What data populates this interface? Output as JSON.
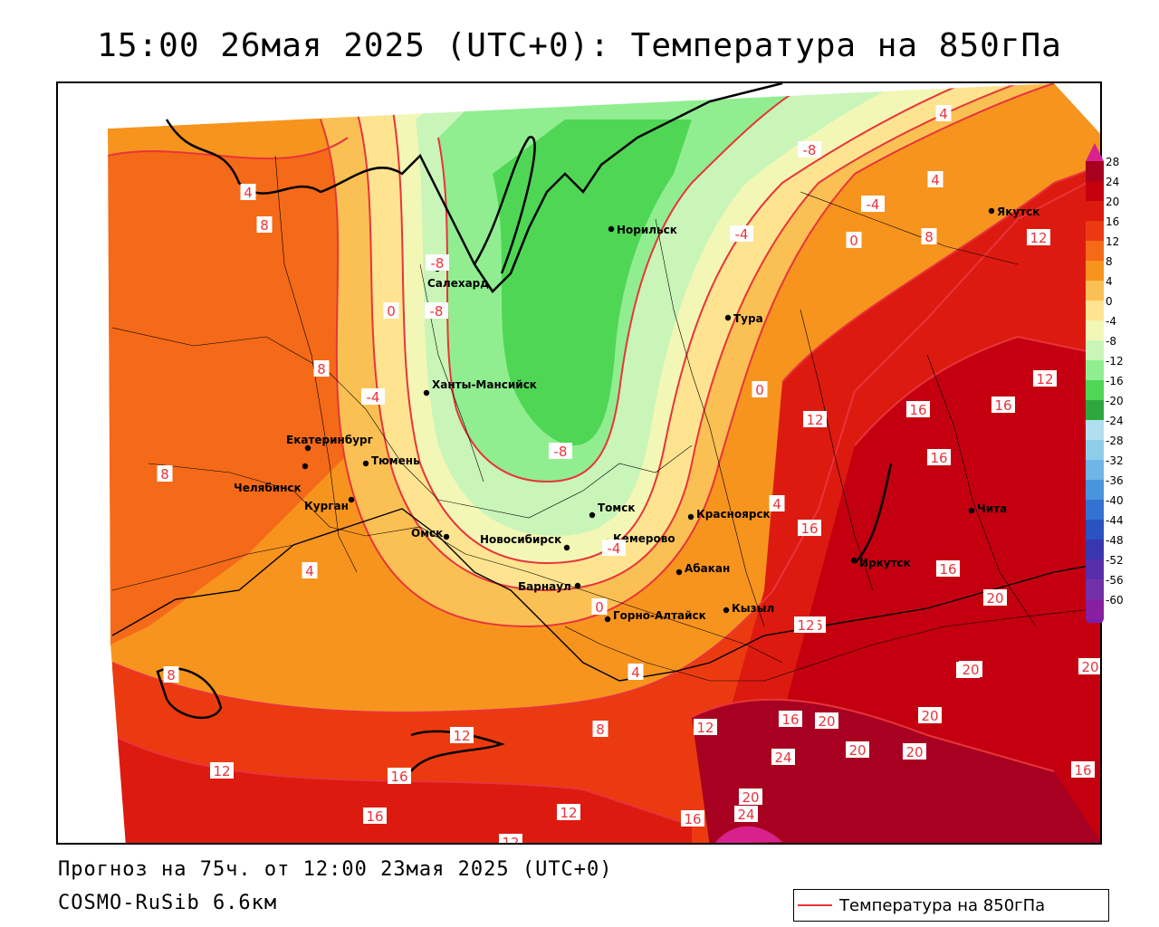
{
  "header": {
    "title": "15:00 26мая 2025 (UTC+0): Температура на 850гПа"
  },
  "footer": {
    "forecast": "Прогноз на 75ч. от 12:00 23мая 2025 (UTC+0)",
    "model": "COSMO-RuSib 6.6км"
  },
  "legend": {
    "label": "Температура на 850гПа",
    "line_color": "#e8343b"
  },
  "colorbar": {
    "ticks": [
      "28",
      "24",
      "20",
      "16",
      "12",
      "8",
      "4",
      "0",
      "-4",
      "-8",
      "-12",
      "-16",
      "-20",
      "-24",
      "-28",
      "-32",
      "-36",
      "-40",
      "-44",
      "-48",
      "-52",
      "-56",
      "-60"
    ],
    "colors": [
      "#a80020",
      "#c40010",
      "#dc1a10",
      "#ec3a10",
      "#f46a18",
      "#f7941e",
      "#fbc054",
      "#fee490",
      "#f3f7b5",
      "#c9f5b8",
      "#90ee90",
      "#4fd655",
      "#2ea83c",
      "#b2dff0",
      "#8ecde8",
      "#6fb6e6",
      "#4a94de",
      "#3372d0",
      "#2a52c0",
      "#3a36b0",
      "#5a2eaa",
      "#7230a8",
      "#881ea0"
    ],
    "top_arrow_color": "#d8218c",
    "bottom_arrow_color": "#7a1eb0"
  },
  "cities": [
    {
      "name": "Норильск"
    },
    {
      "name": "Салехард"
    },
    {
      "name": "Тура"
    },
    {
      "name": "Якутск"
    },
    {
      "name": "Ханты-Мансийск"
    },
    {
      "name": "Екатеринбург"
    },
    {
      "name": "Тюмень"
    },
    {
      "name": "Челябинск"
    },
    {
      "name": "Курган"
    },
    {
      "name": "Омск"
    },
    {
      "name": "Томск"
    },
    {
      "name": "Красноярск"
    },
    {
      "name": "Кемерово"
    },
    {
      "name": "Новосибирск"
    },
    {
      "name": "Абакан"
    },
    {
      "name": "Барнаул"
    },
    {
      "name": "Горно-Алтайск"
    },
    {
      "name": "Кызыл"
    },
    {
      "name": "Иркутск"
    },
    {
      "name": "Чита"
    }
  ],
  "isolines": [
    "4",
    "8",
    "4",
    "-4",
    "-8",
    "-8",
    "0",
    "-4",
    "-4",
    "0",
    "8",
    "4",
    "4",
    "12",
    "8",
    "-8",
    "0",
    "-8",
    "12",
    "16",
    "16",
    "12",
    "8",
    "16",
    "16",
    "16",
    "4",
    "16",
    "20",
    "12",
    "16",
    "4",
    "-4",
    "0",
    "4",
    "8",
    "20",
    "20",
    "8",
    "12",
    "12",
    "16",
    "20",
    "20",
    "20",
    "20",
    "24",
    "12",
    "16",
    "24",
    "16",
    "20",
    "16",
    "12",
    "16",
    "12"
  ]
}
